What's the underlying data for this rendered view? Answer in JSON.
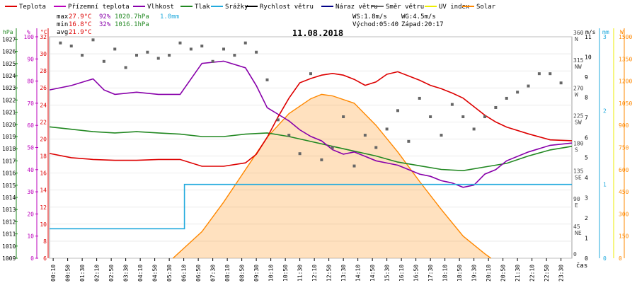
{
  "chart_data": {
    "type": "line",
    "title": "11.08.2018",
    "xlabel": "čas",
    "legend": [
      {
        "name": "Teplota",
        "color": "#dd0000"
      },
      {
        "name": "Přízemní teplota",
        "color": "#bb00bb"
      },
      {
        "name": "Vlhkost",
        "color": "#8800aa"
      },
      {
        "name": "Tlak",
        "color": "#228822"
      },
      {
        "name": "Srážky",
        "color": "#22aadd"
      },
      {
        "name": "Rychlost větru",
        "color": "#000000"
      },
      {
        "name": "Náraz větru",
        "color": "#000088"
      },
      {
        "name": "Směr větru",
        "color": "#666666"
      },
      {
        "name": "UV index",
        "color": "#eeee00"
      },
      {
        "name": "Solar",
        "color": "#ff8800"
      }
    ],
    "stats": {
      "max_label": "max",
      "max_temp": "27.9°C",
      "max_hum": "92%",
      "max_press": "1020.7hPa",
      "rain": "1.0mm",
      "min_label": "min",
      "min_temp": "16.8°C",
      "min_hum": "32%",
      "min_press": "1016.1hPa",
      "avg_label": "avg",
      "avg_temp": "21.9°C"
    },
    "wind_info": {
      "ws": "WS:1.8m/s",
      "wg": "WG:4.5m/s",
      "sunrise": "Východ:05:40",
      "sunset": "Západ:20:17"
    },
    "axes": {
      "hpa_unit": "hPa",
      "hpa_ticks": [
        "1027",
        "1026",
        "1025",
        "1024",
        "1023",
        "1022",
        "1021",
        "1020",
        "1019",
        "1018",
        "1017",
        "1016",
        "1015",
        "1014",
        "1013",
        "1012",
        "1011",
        "1010",
        "1009"
      ],
      "pct_unit": "%",
      "pct_ticks": [
        "100",
        "90",
        "80",
        "70",
        "60",
        "50",
        "40",
        "30",
        "20",
        "10",
        "0"
      ],
      "temp_unit": "°C",
      "temp_ticks": [
        "32",
        "30",
        "28",
        "26",
        "24",
        "22",
        "20",
        "18",
        "16",
        "14",
        "12",
        "10",
        "8",
        "6"
      ],
      "ms_unit": "m/s",
      "ms_ticks": [
        "11",
        "10",
        "9",
        "8",
        "7",
        "6",
        "5",
        "4",
        "3",
        "2",
        "1",
        "0"
      ],
      "mm_unit": "mm",
      "mm_ticks": [
        "3",
        "2",
        "1",
        "0"
      ],
      "w_unit": "W",
      "w_ticks": [
        "1500",
        "1350",
        "1200",
        "1050",
        "900",
        "750",
        "600",
        "450",
        "300",
        "150",
        "0"
      ],
      "deg_ticks": [
        "360",
        "315",
        "270",
        "225",
        "180",
        "135",
        "90",
        "45",
        "0"
      ],
      "dir_ticks": [
        "N",
        "NW",
        "W",
        "SW",
        "S",
        "SE",
        "E",
        "NE"
      ],
      "time_ticks": [
        "00:10",
        "00:50",
        "01:30",
        "02:10",
        "02:50",
        "03:30",
        "04:10",
        "04:50",
        "05:30",
        "06:10",
        "06:50",
        "07:30",
        "08:10",
        "08:50",
        "09:30",
        "10:10",
        "10:50",
        "11:30",
        "12:10",
        "12:50",
        "13:30",
        "14:10",
        "14:50",
        "15:30",
        "16:10",
        "16:50",
        "17:30",
        "18:10",
        "18:50",
        "19:30",
        "20:10",
        "20:50",
        "21:30",
        "22:10",
        "22:50",
        "23:30"
      ]
    },
    "ranges": {
      "temp": [
        6,
        32
      ],
      "humidity": [
        0,
        100
      ],
      "pressure": [
        1009,
        1027.2
      ],
      "wind": [
        0,
        11
      ],
      "rain_mm": [
        0,
        3
      ],
      "solar": [
        0,
        1500
      ],
      "direction_deg": [
        0,
        360
      ],
      "hours": [
        0,
        24
      ]
    },
    "series": [
      {
        "name": "Teplota",
        "unit": "°C",
        "x": [
          0,
          1,
          2,
          3,
          4,
          5,
          6,
          7,
          8,
          9,
          9.5,
          10,
          10.5,
          11,
          11.5,
          12,
          12.5,
          13,
          13.5,
          14,
          14.5,
          15,
          15.5,
          16,
          16.5,
          17,
          17.5,
          18,
          18.5,
          19,
          19.5,
          20,
          20.5,
          21,
          22,
          23,
          24
        ],
        "y": [
          18.3,
          17.8,
          17.6,
          17.5,
          17.5,
          17.6,
          17.6,
          16.8,
          16.8,
          17.2,
          18.2,
          20.2,
          22.6,
          24.8,
          26.6,
          27.1,
          27.5,
          27.7,
          27.5,
          27.0,
          26.3,
          26.7,
          27.6,
          27.9,
          27.4,
          26.9,
          26.3,
          25.9,
          25.4,
          24.8,
          23.8,
          22.8,
          22.0,
          21.4,
          20.6,
          19.9,
          19.8
        ]
      },
      {
        "name": "Vlhkost",
        "unit": "%",
        "x": [
          0,
          1,
          2,
          2.5,
          3,
          4,
          5,
          6,
          7,
          8,
          9,
          9.5,
          10,
          10.5,
          11,
          11.5,
          12,
          12.5,
          13,
          13.5,
          14,
          14.5,
          15,
          15.5,
          16,
          16.5,
          17,
          17.5,
          18,
          18.5,
          19,
          19.5,
          20,
          20.5,
          21,
          22,
          23,
          24
        ],
        "y": [
          76,
          78,
          81,
          76,
          74,
          75,
          74,
          74,
          88,
          89,
          86,
          78,
          68,
          65,
          62,
          58,
          55,
          53,
          49,
          47,
          48,
          46,
          44,
          43,
          42,
          40,
          38,
          37,
          35,
          34,
          32,
          33,
          38,
          40,
          44,
          48,
          51,
          52
        ]
      },
      {
        "name": "Tlak",
        "unit": "hPa",
        "x": [
          0,
          1,
          2,
          3,
          4,
          5,
          6,
          7,
          8,
          9,
          10,
          11,
          12,
          13,
          14,
          15,
          16,
          17,
          18,
          19,
          20,
          21,
          22,
          23,
          24
        ],
        "y": [
          1019.8,
          1019.6,
          1019.4,
          1019.3,
          1019.4,
          1019.3,
          1019.2,
          1019.0,
          1019.0,
          1019.2,
          1019.3,
          1019.0,
          1018.6,
          1018.2,
          1017.8,
          1017.4,
          1016.9,
          1016.6,
          1016.3,
          1016.2,
          1016.5,
          1016.8,
          1017.4,
          1017.9,
          1018.2
        ]
      },
      {
        "name": "Srážky",
        "unit": "mm",
        "x": [
          0,
          6.2,
          6.2,
          24
        ],
        "y": [
          0.4,
          0.4,
          1.0,
          1.0
        ]
      },
      {
        "name": "Solar",
        "unit": "W",
        "x": [
          5.67,
          7,
          8,
          9,
          10,
          11,
          12,
          12.5,
          13,
          14,
          15,
          16,
          17,
          18,
          19,
          20,
          20.28
        ],
        "y": [
          0,
          180,
          380,
          600,
          820,
          980,
          1080,
          1110,
          1100,
          1050,
          900,
          720,
          520,
          330,
          150,
          30,
          0
        ]
      },
      {
        "name": "Směr větru",
        "unit": "°",
        "x": [
          0.5,
          1,
          1.5,
          2,
          2.5,
          3,
          3.5,
          4,
          4.5,
          5,
          5.5,
          6,
          6.5,
          7,
          7.5,
          8,
          8.5,
          9,
          9.5,
          10,
          10.5,
          11,
          11.5,
          12,
          12.5,
          13,
          13.5,
          14,
          14.5,
          15,
          15.5,
          16,
          16.5,
          17,
          17.5,
          18,
          18.5,
          19,
          19.5,
          20,
          20.5,
          21,
          21.5,
          22,
          22.5,
          23,
          23.5
        ],
        "y": [
          350,
          345,
          330,
          355,
          320,
          340,
          310,
          330,
          335,
          325,
          330,
          350,
          340,
          345,
          320,
          340,
          330,
          350,
          335,
          290,
          225,
          200,
          170,
          300,
          160,
          180,
          230,
          150,
          200,
          180,
          210,
          240,
          190,
          260,
          230,
          200,
          250,
          230,
          210,
          230,
          245,
          260,
          270,
          280,
          300,
          300,
          285
        ]
      }
    ]
  }
}
